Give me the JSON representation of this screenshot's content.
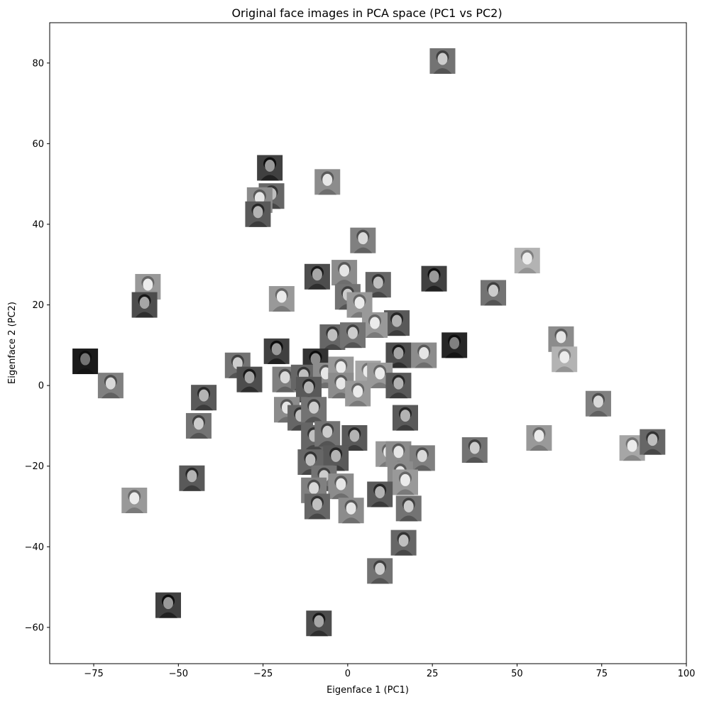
{
  "chart_data": {
    "type": "scatter",
    "title": "Original face images in PCA space (PC1 vs PC2)",
    "xlabel": "Eigenface 1 (PC1)",
    "ylabel": "Eigenface 2 (PC2)",
    "xlim": [
      -88,
      100
    ],
    "ylim": [
      -69,
      90
    ],
    "xticks": [
      -75,
      -50,
      -25,
      0,
      25,
      50,
      75,
      100
    ],
    "yticks": [
      -60,
      -40,
      -20,
      0,
      20,
      40,
      60,
      80
    ],
    "xtick_labels": [
      "−75",
      "−50",
      "−25",
      "0",
      "25",
      "50",
      "75",
      "100"
    ],
    "ytick_labels": [
      "−60",
      "−40",
      "−20",
      "0",
      "20",
      "40",
      "60",
      "80"
    ],
    "grid": false,
    "marker": "face-thumbnail",
    "points": [
      {
        "x": 28,
        "y": 80.5,
        "tone": 0.45
      },
      {
        "x": -23,
        "y": 54,
        "tone": 0.25
      },
      {
        "x": -6,
        "y": 50.5,
        "tone": 0.55
      },
      {
        "x": -22.5,
        "y": 47,
        "tone": 0.4
      },
      {
        "x": -26,
        "y": 46,
        "tone": 0.55
      },
      {
        "x": -26.5,
        "y": 42.5,
        "tone": 0.35
      },
      {
        "x": 4.5,
        "y": 36,
        "tone": 0.5
      },
      {
        "x": 53,
        "y": 31,
        "tone": 0.7
      },
      {
        "x": -59,
        "y": 24.5,
        "tone": 0.6
      },
      {
        "x": -60,
        "y": 20,
        "tone": 0.3
      },
      {
        "x": -9,
        "y": 27,
        "tone": 0.3
      },
      {
        "x": -1,
        "y": 28,
        "tone": 0.55
      },
      {
        "x": 9,
        "y": 25,
        "tone": 0.4
      },
      {
        "x": 25.5,
        "y": 26.5,
        "tone": 0.25
      },
      {
        "x": 43,
        "y": 23,
        "tone": 0.45
      },
      {
        "x": -19.5,
        "y": 21.5,
        "tone": 0.6
      },
      {
        "x": 0,
        "y": 22,
        "tone": 0.45
      },
      {
        "x": 3.5,
        "y": 20,
        "tone": 0.6
      },
      {
        "x": 14.5,
        "y": 15.5,
        "tone": 0.35
      },
      {
        "x": 8,
        "y": 15,
        "tone": 0.6
      },
      {
        "x": -4.5,
        "y": 12,
        "tone": 0.4
      },
      {
        "x": 1.5,
        "y": 12.5,
        "tone": 0.45
      },
      {
        "x": 31.5,
        "y": 10,
        "tone": 0.15
      },
      {
        "x": 63,
        "y": 11.5,
        "tone": 0.55
      },
      {
        "x": -21,
        "y": 8.5,
        "tone": 0.25
      },
      {
        "x": 15,
        "y": 7.5,
        "tone": 0.3
      },
      {
        "x": 22.5,
        "y": 7.5,
        "tone": 0.55
      },
      {
        "x": -9.5,
        "y": 6,
        "tone": 0.2
      },
      {
        "x": -77.5,
        "y": 6,
        "tone": 0.1
      },
      {
        "x": -32.5,
        "y": 5,
        "tone": 0.45
      },
      {
        "x": 64,
        "y": 6.5,
        "tone": 0.7
      },
      {
        "x": -29,
        "y": 1.5,
        "tone": 0.3
      },
      {
        "x": -18.5,
        "y": 1.5,
        "tone": 0.5
      },
      {
        "x": -13,
        "y": 2,
        "tone": 0.4
      },
      {
        "x": -6.5,
        "y": 2.5,
        "tone": 0.55
      },
      {
        "x": -2,
        "y": 4,
        "tone": 0.6
      },
      {
        "x": 6,
        "y": 3,
        "tone": 0.65
      },
      {
        "x": 9.5,
        "y": 2.5,
        "tone": 0.6
      },
      {
        "x": 15,
        "y": 0,
        "tone": 0.35
      },
      {
        "x": -70,
        "y": 0,
        "tone": 0.5
      },
      {
        "x": -11.5,
        "y": -1,
        "tone": 0.35
      },
      {
        "x": -2,
        "y": 0,
        "tone": 0.55
      },
      {
        "x": 3,
        "y": -2,
        "tone": 0.6
      },
      {
        "x": -42.5,
        "y": -3,
        "tone": 0.35
      },
      {
        "x": -18,
        "y": -6,
        "tone": 0.55
      },
      {
        "x": -14,
        "y": -8,
        "tone": 0.4
      },
      {
        "x": -10,
        "y": -6,
        "tone": 0.45
      },
      {
        "x": 17,
        "y": -8,
        "tone": 0.35
      },
      {
        "x": 74,
        "y": -4.5,
        "tone": 0.5
      },
      {
        "x": -44,
        "y": -10,
        "tone": 0.45
      },
      {
        "x": -10,
        "y": -13,
        "tone": 0.4
      },
      {
        "x": -6,
        "y": -12,
        "tone": 0.45
      },
      {
        "x": 2,
        "y": -13,
        "tone": 0.35
      },
      {
        "x": 56.5,
        "y": -13,
        "tone": 0.6
      },
      {
        "x": 37.5,
        "y": -16,
        "tone": 0.45
      },
      {
        "x": 84,
        "y": -15.5,
        "tone": 0.65
      },
      {
        "x": 90,
        "y": -14,
        "tone": 0.4
      },
      {
        "x": 12,
        "y": -17,
        "tone": 0.6
      },
      {
        "x": 15,
        "y": -17,
        "tone": 0.55
      },
      {
        "x": 22,
        "y": -18,
        "tone": 0.5
      },
      {
        "x": -11,
        "y": -19,
        "tone": 0.4
      },
      {
        "x": -3.5,
        "y": -18,
        "tone": 0.35
      },
      {
        "x": 15.5,
        "y": -22,
        "tone": 0.55
      },
      {
        "x": -46,
        "y": -23,
        "tone": 0.35
      },
      {
        "x": -7,
        "y": -23,
        "tone": 0.45
      },
      {
        "x": -2,
        "y": -25,
        "tone": 0.55
      },
      {
        "x": 17,
        "y": -24,
        "tone": 0.6
      },
      {
        "x": -10,
        "y": -26,
        "tone": 0.5
      },
      {
        "x": 9.5,
        "y": -27,
        "tone": 0.35
      },
      {
        "x": -63,
        "y": -28.5,
        "tone": 0.6
      },
      {
        "x": -9,
        "y": -30,
        "tone": 0.4
      },
      {
        "x": 18,
        "y": -30.5,
        "tone": 0.45
      },
      {
        "x": 1,
        "y": -31,
        "tone": 0.55
      },
      {
        "x": 16.5,
        "y": -39,
        "tone": 0.4
      },
      {
        "x": 9.5,
        "y": -46,
        "tone": 0.45
      },
      {
        "x": -53,
        "y": -54.5,
        "tone": 0.25
      },
      {
        "x": -8.5,
        "y": -59,
        "tone": 0.3
      }
    ]
  }
}
